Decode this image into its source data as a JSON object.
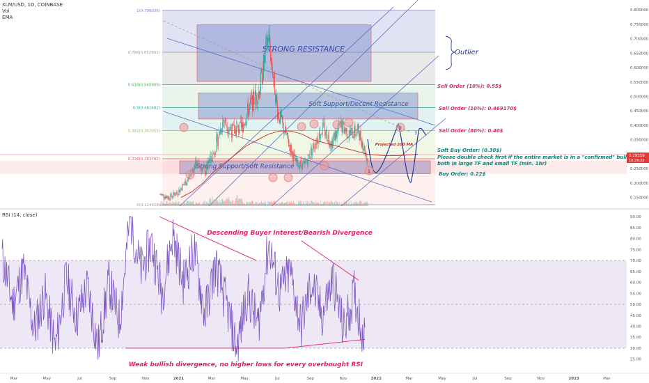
{
  "header": {
    "symbol": "XLM/USD, 1D, COINBASE",
    "vol_label": "Vol",
    "ema_label": "EMA"
  },
  "rsi_header": {
    "label": "RSI (14, close)"
  },
  "price_badge": {
    "value": "0.29359",
    "countdown": "16:29:22",
    "color": "#e53935"
  },
  "colors": {
    "candle_up": "#26a69a",
    "candle_down": "#ef5350",
    "ma": "#c62828",
    "rsi_line": "#7e57c2",
    "rsi_band": "#ede7f6",
    "annotation_red": "#e91e63",
    "annotation_teal": "#00897b",
    "annotation_purple": "#5c6bc0",
    "resistance_box": "#7986cb",
    "support_box": "#ef9a9a"
  },
  "chart_data": [
    {
      "type": "candlestick",
      "title": "XLM/USD, 1D, COINBASE",
      "x_ticks": [
        "Mar",
        "May",
        "Jul",
        "Sep",
        "Nov",
        "2021",
        "Mar",
        "May",
        "Jul",
        "Sep",
        "Nov",
        "2022",
        "Mar",
        "May",
        "Jul",
        "Sep",
        "Nov",
        "2023",
        "Mar"
      ],
      "y_ticks": [
        "0.800000",
        "0.750000",
        "0.700000",
        "0.650000",
        "0.600000",
        "0.550000",
        "0.500000",
        "0.450000",
        "0.400000",
        "0.350000",
        "0.300000",
        "0.250000",
        "0.200000",
        "0.150000"
      ],
      "ylim": [
        0.12,
        0.81
      ],
      "fib_levels": [
        {
          "label": "1(0.798036)",
          "value": 0.798
        },
        {
          "label": "0.786(0.652991)",
          "value": 0.653
        },
        {
          "label": "0.618(0.540909)",
          "value": 0.541
        },
        {
          "label": "0.5(0.461482)",
          "value": 0.461
        },
        {
          "label": "0.382(0.382055)",
          "value": 0.382
        },
        {
          "label": "0.236(0.283702)",
          "value": 0.284
        },
        {
          "label": "0(0.124928)",
          "value": 0.125
        }
      ],
      "close_series": [
        0.16,
        0.15,
        0.17,
        0.21,
        0.27,
        0.24,
        0.31,
        0.42,
        0.38,
        0.39,
        0.47,
        0.52,
        0.71,
        0.45,
        0.36,
        0.27,
        0.26,
        0.33,
        0.39,
        0.34,
        0.4,
        0.37,
        0.38,
        0.28
      ],
      "ma_series": [
        0.15,
        0.17,
        0.2,
        0.24,
        0.27,
        0.3,
        0.33,
        0.35,
        0.37,
        0.38,
        0.38,
        0.37,
        0.35,
        0.34,
        0.33,
        0.32,
        0.31,
        0.3
      ],
      "last_price": 0.29359,
      "zones": [
        {
          "label": "STRONG RESISTANCE",
          "low": 0.552,
          "high": 0.748
        },
        {
          "label": "Soft Support/Decent Resistance",
          "low": 0.422,
          "high": 0.512
        },
        {
          "label": "Strong Support/Soft Resistance",
          "low": 0.232,
          "high": 0.277
        }
      ],
      "annotations": {
        "outlier": "Outlier",
        "sell_10_a": "Sell Order (10%): 0.55$",
        "sell_10_b": "Sell Order (10%): 0.469170$",
        "sell_80": "Sell Order (80%): 0.40$",
        "soft_buy": "Soft Buy Order: (0.30$)",
        "note_line1": "Please double check first if the entire market is in a \"confirmed\" bulltrend",
        "note_line2": "both in large TF and small TF (min. 1hr)",
        "buy_order": "Buy Order: 0.22$",
        "projected_ma": "Projected 200 MA"
      },
      "markers": [
        "1",
        "2",
        "3"
      ]
    },
    {
      "type": "line",
      "title": "RSI (14, close)",
      "y_ticks": [
        "90.00",
        "85.00",
        "80.00",
        "75.00",
        "70.00",
        "65.00",
        "60.00",
        "55.00",
        "50.00",
        "45.00",
        "40.00",
        "35.00",
        "30.00",
        "25.00"
      ],
      "ylim": [
        23,
        91
      ],
      "band": [
        30,
        70
      ],
      "mid": 50,
      "rsi_anchors": [
        72,
        50,
        66,
        38,
        55,
        30,
        62,
        44,
        58,
        30,
        60,
        42,
        90,
        65,
        78,
        55,
        82,
        60,
        75,
        45,
        68,
        50,
        30,
        55,
        40,
        78,
        55,
        65,
        40,
        60,
        45,
        62,
        38,
        55,
        33
      ],
      "annotations": {
        "bearish": "Descending Buyer Interest/Bearish Divergence",
        "bullish": "Weak bullish divergence, no higher lows for every overbought RSI"
      }
    }
  ]
}
